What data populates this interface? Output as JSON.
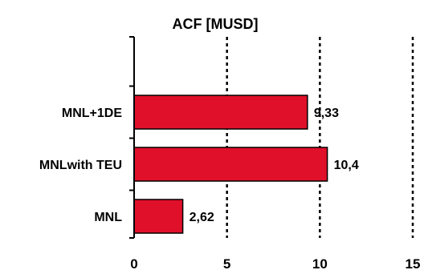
{
  "chart_data": {
    "type": "bar",
    "orientation": "horizontal",
    "title": "ACF [MUSD]",
    "xlabel": "",
    "ylabel": "",
    "categories": [
      "MNL+1DE",
      "MNLwith TEU",
      "MNL"
    ],
    "values": [
      9.33,
      10.4,
      2.62
    ],
    "value_labels": [
      "9,33",
      "10,4",
      "2,62"
    ],
    "xlim": [
      0,
      15
    ],
    "x_ticks": [
      0,
      5,
      10,
      15
    ],
    "x_tick_labels": [
      "0",
      "5",
      "10",
      "15"
    ],
    "grid": "vertical dotted",
    "legend": "none",
    "bar_color": "#e0102a",
    "bar_edge_color": "#000000"
  }
}
